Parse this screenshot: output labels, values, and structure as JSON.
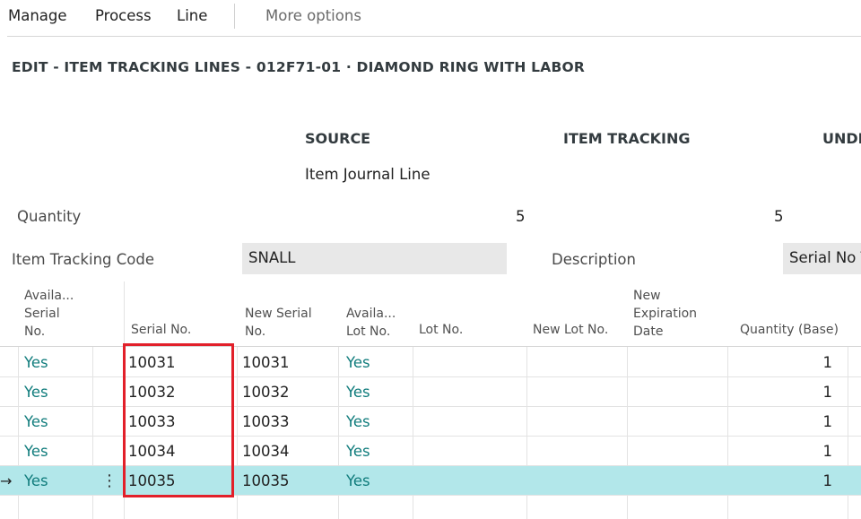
{
  "menu": {
    "manage": "Manage",
    "process": "Process",
    "line": "Line",
    "more_options": "More options"
  },
  "page_title": "EDIT - ITEM TRACKING LINES - 012F71-01 · DIAMOND RING WITH LABOR",
  "sections": {
    "source": "SOURCE",
    "item_tracking": "ITEM TRACKING",
    "undefined_cut": "UNDE"
  },
  "source_subtext": "Item Journal Line",
  "quantity": {
    "label": "Quantity",
    "source_value": "5",
    "item_tracking_value": "5"
  },
  "item_tracking_code": {
    "label": "Item Tracking Code",
    "value": "SNALL"
  },
  "description": {
    "label": "Description",
    "value": "Serial No T"
  },
  "columns": {
    "avail_serial": "Availa...\nSerial\nNo.",
    "serial_no": "Serial No.",
    "new_serial_no": "New Serial\nNo.",
    "avail_lot": "Availa...\nLot No.",
    "lot_no": "Lot No.",
    "new_lot_no": "New Lot No.",
    "new_expiration_date": "New\nExpiration\nDate",
    "quantity_base": "Quantity (Base)"
  },
  "rows": [
    {
      "avail_serial": "Yes",
      "serial_no": "10031",
      "new_serial_no": "10031",
      "avail_lot": "Yes",
      "lot_no": "",
      "new_lot_no": "",
      "expiration": "",
      "quantity": "1"
    },
    {
      "avail_serial": "Yes",
      "serial_no": "10032",
      "new_serial_no": "10032",
      "avail_lot": "Yes",
      "lot_no": "",
      "new_lot_no": "",
      "expiration": "",
      "quantity": "1"
    },
    {
      "avail_serial": "Yes",
      "serial_no": "10033",
      "new_serial_no": "10033",
      "avail_lot": "Yes",
      "lot_no": "",
      "new_lot_no": "",
      "expiration": "",
      "quantity": "1"
    },
    {
      "avail_serial": "Yes",
      "serial_no": "10034",
      "new_serial_no": "10034",
      "avail_lot": "Yes",
      "lot_no": "",
      "new_lot_no": "",
      "expiration": "",
      "quantity": "1"
    },
    {
      "avail_serial": "Yes",
      "serial_no": "10035",
      "new_serial_no": "10035",
      "avail_lot": "Yes",
      "lot_no": "",
      "new_lot_no": "",
      "expiration": "",
      "quantity": "1"
    }
  ],
  "selected_row_marker": "→",
  "row_menu_glyph": "⋮",
  "colors": {
    "selected_row": "#b2e7ea",
    "yes_text": "#107c7c",
    "highlight_box": "#e2202a"
  }
}
